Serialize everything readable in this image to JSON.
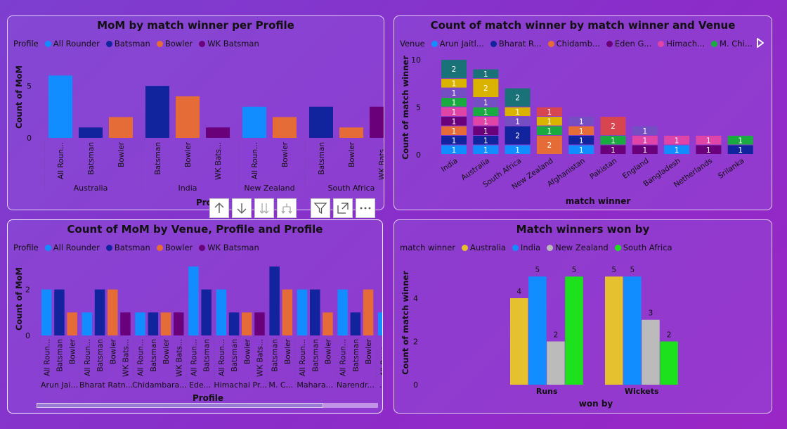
{
  "colors": {
    "all_rounder": "#118DFF",
    "batsman": "#12239E",
    "bowler": "#E66C37",
    "wk_batsman": "#6B007B",
    "australia": "#E6C12F",
    "india": "#118DFF",
    "new_zealand": "#BBBBBB",
    "south_africa": "#1EE11E"
  },
  "panel1": {
    "title": "MoM by match winner per Profile",
    "legend_title": "Profile",
    "legend": [
      "All Rounder",
      "Batsman",
      "Bowler",
      "WK Batsman"
    ],
    "ylabel": "Count of MoM",
    "xlabel": "Profile",
    "y_ticks": [
      0,
      5
    ],
    "chart_data": {
      "type": "bar",
      "ylim": [
        0,
        6.3
      ],
      "groups": [
        {
          "name": "Australia",
          "bars": [
            {
              "label": "All Roun...",
              "profile": "all_rounder",
              "value": 6
            },
            {
              "label": "Batsman",
              "profile": "batsman",
              "value": 1
            },
            {
              "label": "Bowler",
              "profile": "bowler",
              "value": 2
            }
          ]
        },
        {
          "name": "India",
          "bars": [
            {
              "label": "Batsman",
              "profile": "batsman",
              "value": 5
            },
            {
              "label": "Bowler",
              "profile": "bowler",
              "value": 4
            },
            {
              "label": "WK Bats...",
              "profile": "wk_batsman",
              "value": 1
            }
          ]
        },
        {
          "name": "New Zealand",
          "bars": [
            {
              "label": "All Roun...",
              "profile": "all_rounder",
              "value": 3
            },
            {
              "label": "Bowler",
              "profile": "bowler",
              "value": 2
            }
          ]
        },
        {
          "name": "South Africa",
          "bars": [
            {
              "label": "Batsman",
              "profile": "batsman",
              "value": 3
            },
            {
              "label": "Bowler",
              "profile": "bowler",
              "value": 1
            },
            {
              "label": "WK Bats...",
              "profile": "wk_batsman",
              "value": 3
            }
          ]
        }
      ]
    }
  },
  "panel2": {
    "title": "Count of match winner by match winner and Venue",
    "legend_title": "Venue",
    "legend": [
      {
        "label": "Arun Jaitl...",
        "color": "#118DFF"
      },
      {
        "label": "Bharat R...",
        "color": "#12239E"
      },
      {
        "label": "Chidamb...",
        "color": "#E66C37"
      },
      {
        "label": "Eden G...",
        "color": "#6B007B"
      },
      {
        "label": "Himach...",
        "color": "#E044A7"
      },
      {
        "label": "M. Chi...",
        "color": "#1AAB40"
      }
    ],
    "ylabel": "Count of match winner",
    "xlabel": "match winner",
    "y_ticks": [
      0,
      5,
      10
    ],
    "chart_data": {
      "type": "bar",
      "ylim": [
        0,
        10.6
      ],
      "categories": [
        "India",
        "Australia",
        "South Africa",
        "New Zealand",
        "Afghanistan",
        "Pakistan",
        "England",
        "Bangladesh",
        "Netherlands",
        "Srilanka"
      ],
      "stacks": [
        [
          {
            "v": 1,
            "c": "#118DFF"
          },
          {
            "v": 1,
            "c": "#12239E"
          },
          {
            "v": 1,
            "c": "#E66C37"
          },
          {
            "v": 1,
            "c": "#6B007B"
          },
          {
            "v": 1,
            "c": "#E044A7"
          },
          {
            "v": 1,
            "c": "#1AAB40"
          },
          {
            "v": 1,
            "c": "#744EC2"
          },
          {
            "v": 1,
            "c": "#D9B300"
          },
          {
            "v": 2,
            "c": "#197278"
          }
        ],
        [
          {
            "v": 1,
            "c": "#118DFF"
          },
          {
            "v": 1,
            "c": "#12239E"
          },
          {
            "v": 1,
            "c": "#6B007B"
          },
          {
            "v": 1,
            "c": "#E044A7"
          },
          {
            "v": 1,
            "c": "#1AAB40"
          },
          {
            "v": 1,
            "c": "#744EC2"
          },
          {
            "v": 2,
            "c": "#D9B300"
          },
          {
            "v": 1,
            "c": "#197278"
          }
        ],
        [
          {
            "v": 1,
            "c": "#118DFF"
          },
          {
            "v": 2,
            "c": "#12239E"
          },
          {
            "v": 1,
            "c": "#744EC2"
          },
          {
            "v": 1,
            "c": "#D9B300"
          },
          {
            "v": 2,
            "c": "#197278"
          }
        ],
        [
          {
            "v": 2,
            "c": "#E66C37"
          },
          {
            "v": 1,
            "c": "#1AAB40"
          },
          {
            "v": 1,
            "c": "#D9B300"
          },
          {
            "v": 1,
            "c": "#D64550"
          }
        ],
        [
          {
            "v": 1,
            "c": "#118DFF"
          },
          {
            "v": 1,
            "c": "#12239E"
          },
          {
            "v": 1,
            "c": "#E66C37"
          },
          {
            "v": 1,
            "c": "#744EC2"
          }
        ],
        [
          {
            "v": 1,
            "c": "#6B007B"
          },
          {
            "v": 1,
            "c": "#1AAB40"
          },
          {
            "v": 2,
            "c": "#D64550"
          }
        ],
        [
          {
            "v": 1,
            "c": "#6B007B"
          },
          {
            "v": 1,
            "c": "#E044A7"
          },
          {
            "v": 1,
            "c": "#744EC2"
          }
        ],
        [
          {
            "v": 1,
            "c": "#118DFF"
          },
          {
            "v": 1,
            "c": "#E044A7"
          }
        ],
        [
          {
            "v": 1,
            "c": "#6B007B"
          },
          {
            "v": 1,
            "c": "#E044A7"
          }
        ],
        [
          {
            "v": 1,
            "c": "#12239E"
          },
          {
            "v": 1,
            "c": "#1AAB40"
          }
        ]
      ]
    }
  },
  "panel3": {
    "title": "Count of MoM by Venue, Profile and Profile",
    "legend_title": "Profile",
    "legend": [
      "All Rounder",
      "Batsman",
      "Bowler",
      "WK Batsman"
    ],
    "ylabel": "Count of MoM",
    "xlabel": "Profile",
    "y_ticks": [
      0,
      2
    ],
    "chart_data": {
      "type": "bar",
      "ylim": [
        0,
        3.15
      ],
      "groups": [
        {
          "name": "Arun Jai...",
          "bars": [
            {
              "label": "All Roun...",
              "profile": "all_rounder",
              "value": 2
            },
            {
              "label": "Batsman",
              "profile": "batsman",
              "value": 2
            },
            {
              "label": "Bowler",
              "profile": "bowler",
              "value": 1
            }
          ]
        },
        {
          "name": "Bharat Ratn...",
          "bars": [
            {
              "label": "All Roun...",
              "profile": "all_rounder",
              "value": 1
            },
            {
              "label": "Batsman",
              "profile": "batsman",
              "value": 2
            },
            {
              "label": "Bowler",
              "profile": "bowler",
              "value": 2
            },
            {
              "label": "WK Bats...",
              "profile": "wk_batsman",
              "value": 1
            }
          ]
        },
        {
          "name": "Chidambara...",
          "bars": [
            {
              "label": "All Roun...",
              "profile": "all_rounder",
              "value": 1
            },
            {
              "label": "Batsman",
              "profile": "batsman",
              "value": 1
            },
            {
              "label": "Bowler",
              "profile": "bowler",
              "value": 1
            },
            {
              "label": "WK Bats...",
              "profile": "wk_batsman",
              "value": 1
            }
          ]
        },
        {
          "name": "Ede...",
          "bars": [
            {
              "label": "All Roun...",
              "profile": "all_rounder",
              "value": 3
            },
            {
              "label": "Batsman",
              "profile": "batsman",
              "value": 2
            }
          ]
        },
        {
          "name": "Himachal Pr...",
          "bars": [
            {
              "label": "All Roun...",
              "profile": "all_rounder",
              "value": 2
            },
            {
              "label": "Batsman",
              "profile": "batsman",
              "value": 1
            },
            {
              "label": "Bowler",
              "profile": "bowler",
              "value": 1
            },
            {
              "label": "WK Bats...",
              "profile": "wk_batsman",
              "value": 1
            }
          ]
        },
        {
          "name": "M. C...",
          "bars": [
            {
              "label": "Batsman",
              "profile": "batsman",
              "value": 3
            },
            {
              "label": "Bowler",
              "profile": "bowler",
              "value": 2
            }
          ]
        },
        {
          "name": "Mahara...",
          "bars": [
            {
              "label": "All Roun...",
              "profile": "all_rounder",
              "value": 2
            },
            {
              "label": "Batsman",
              "profile": "batsman",
              "value": 2
            },
            {
              "label": "Bowler",
              "profile": "bowler",
              "value": 1
            }
          ]
        },
        {
          "name": "Narendr...",
          "bars": [
            {
              "label": "All Roun...",
              "profile": "all_rounder",
              "value": 2
            },
            {
              "label": "Batsman",
              "profile": "batsman",
              "value": 1
            },
            {
              "label": "Bowler",
              "profile": "bowler",
              "value": 2
            }
          ]
        },
        {
          "name": "...",
          "bars": [
            {
              "label": "All Roun...",
              "profile": "all_rounder",
              "value": 1
            }
          ]
        }
      ]
    }
  },
  "panel4": {
    "title": "Match winners won by",
    "legend_title": "match winner",
    "legend": [
      "Australia",
      "India",
      "New Zealand",
      "South Africa"
    ],
    "ylabel": "Count of match winner",
    "xlabel": "won by",
    "y_ticks": [
      0,
      2,
      4
    ],
    "chart_data": {
      "type": "bar",
      "ylim": [
        0,
        5.3
      ],
      "categories": [
        "Runs",
        "Wickets"
      ],
      "series": [
        {
          "name": "Australia",
          "values": [
            4,
            5
          ]
        },
        {
          "name": "India",
          "values": [
            5,
            5
          ]
        },
        {
          "name": "New Zealand",
          "values": [
            2,
            3
          ]
        },
        {
          "name": "South Africa",
          "values": [
            5,
            2
          ]
        }
      ]
    }
  }
}
